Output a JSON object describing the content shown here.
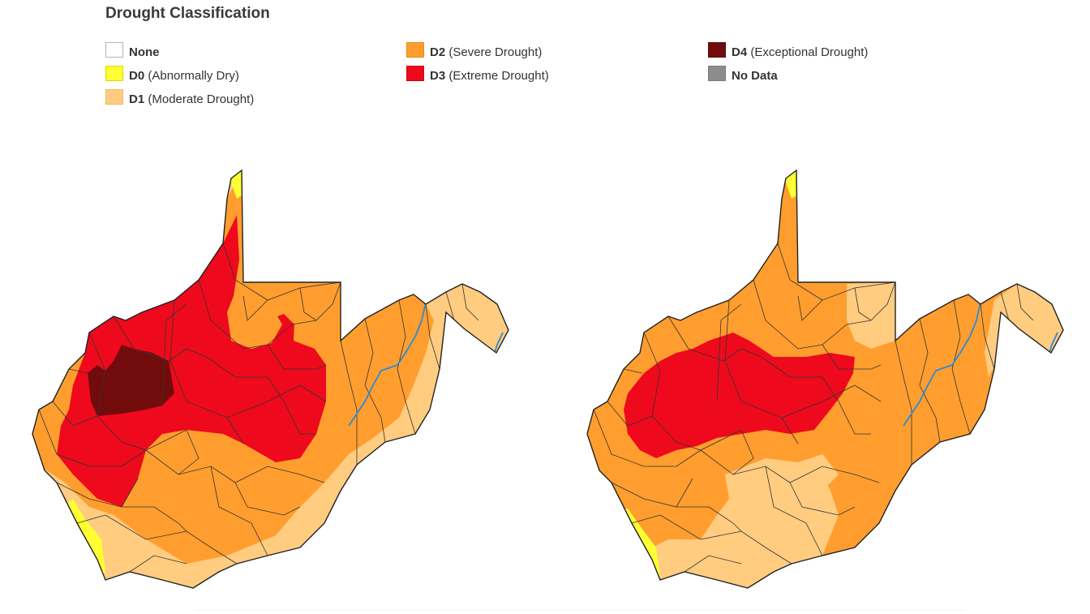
{
  "legend": {
    "title": "Drought Classification",
    "items": [
      {
        "code": "None",
        "desc": "",
        "color": "#ffffff",
        "border": "#b5b5b5"
      },
      {
        "code": "D0",
        "desc": "(Abnormally Dry)",
        "color": "#ffff33",
        "border": "#e0d800"
      },
      {
        "code": "D1",
        "desc": "(Moderate Drought)",
        "color": "#ffcc80",
        "border": "#f0b860"
      },
      {
        "code": "D2",
        "desc": "(Severe Drought)",
        "color": "#ff9e2e",
        "border": "#f08a10"
      },
      {
        "code": "D3",
        "desc": "(Extreme Drought)",
        "color": "#ee0a1c",
        "border": "#d00010"
      },
      {
        "code": "D4",
        "desc": "(Exceptional Drought)",
        "color": "#720c0c",
        "border": "#5a0808"
      },
      {
        "code": "No Data",
        "desc": "",
        "color": "#8c8c8c",
        "border": "#7a7a7a"
      }
    ]
  },
  "maps": [
    {
      "name": "map-left"
    },
    {
      "name": "map-right"
    }
  ],
  "colors": {
    "river": "#2a8ad8",
    "county_lines": "#333333"
  }
}
